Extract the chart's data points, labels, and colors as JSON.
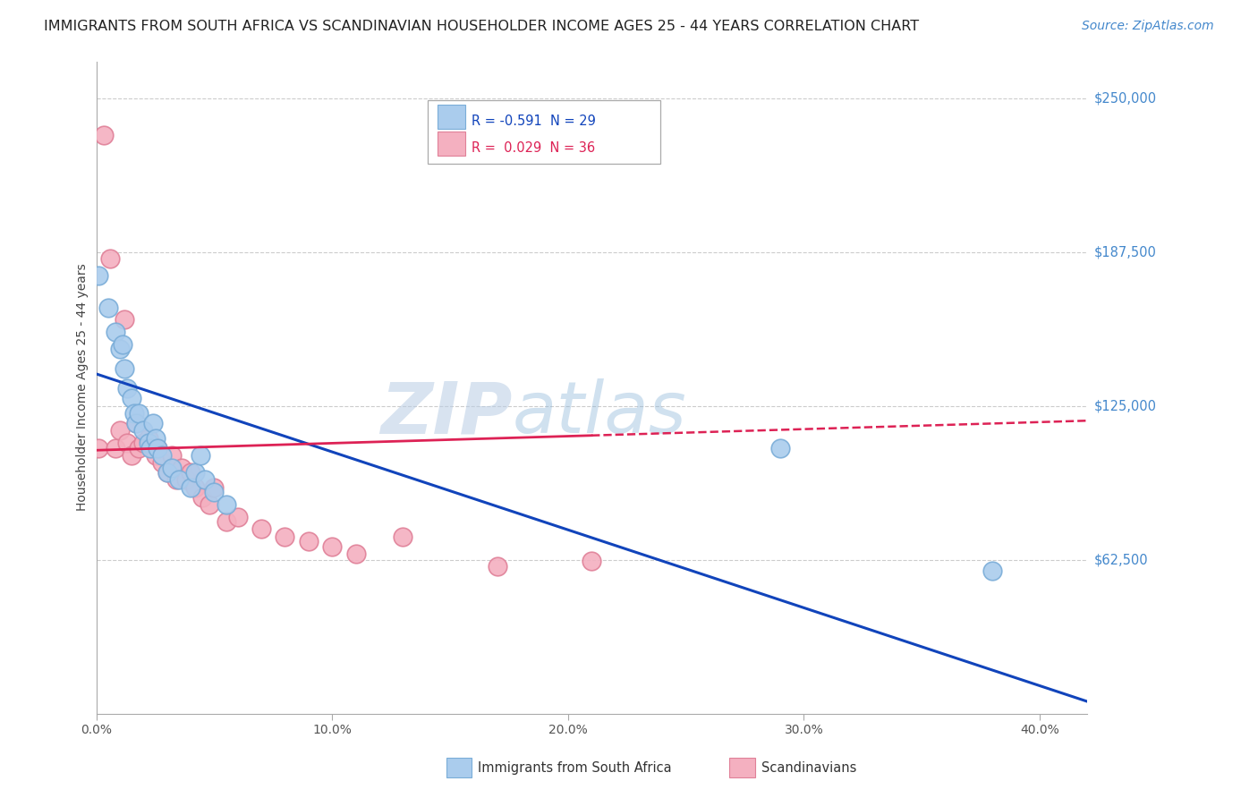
{
  "title": "IMMIGRANTS FROM SOUTH AFRICA VS SCANDINAVIAN HOUSEHOLDER INCOME AGES 25 - 44 YEARS CORRELATION CHART",
  "source_text": "Source: ZipAtlas.com",
  "ylabel": "Householder Income Ages 25 - 44 years",
  "xlabel_ticks": [
    "0.0%",
    "10.0%",
    "20.0%",
    "30.0%",
    "40.0%"
  ],
  "xlabel_tick_vals": [
    0.0,
    0.1,
    0.2,
    0.3,
    0.4
  ],
  "ytick_labels": [
    "$62,500",
    "$125,000",
    "$187,500",
    "$250,000"
  ],
  "ytick_vals": [
    62500,
    125000,
    187500,
    250000
  ],
  "xlim": [
    0.0,
    0.42
  ],
  "ylim": [
    0,
    265000
  ],
  "background_color": "#ffffff",
  "grid_color": "#cccccc",
  "title_color": "#222222",
  "title_fontsize": 11.5,
  "source_fontsize": 10,
  "source_color": "#4488cc",
  "watermark_color": "#d0dff0",
  "south_africa_color": "#aacced",
  "south_africa_edge": "#7aadd8",
  "scandinavian_color": "#f4b0c0",
  "scandinavian_edge": "#e08098",
  "south_africa_line_color": "#1144bb",
  "scandinavian_line_color": "#dd2255",
  "legend_r_sa": "R = -0.591",
  "legend_n_sa": "N = 29",
  "legend_r_sc": "R =  0.029",
  "legend_n_sc": "N = 36",
  "legend_color_sa": "#1144bb",
  "legend_color_sc": "#dd2255",
  "south_africa_x": [
    0.001,
    0.005,
    0.008,
    0.01,
    0.011,
    0.012,
    0.013,
    0.015,
    0.016,
    0.017,
    0.018,
    0.02,
    0.022,
    0.023,
    0.024,
    0.025,
    0.026,
    0.028,
    0.03,
    0.032,
    0.035,
    0.04,
    0.042,
    0.044,
    0.046,
    0.05,
    0.055,
    0.29,
    0.38
  ],
  "south_africa_y": [
    178000,
    165000,
    155000,
    148000,
    150000,
    140000,
    132000,
    128000,
    122000,
    118000,
    122000,
    115000,
    110000,
    108000,
    118000,
    112000,
    108000,
    105000,
    98000,
    100000,
    95000,
    92000,
    98000,
    105000,
    95000,
    90000,
    85000,
    108000,
    58000
  ],
  "scandinavian_x": [
    0.001,
    0.003,
    0.006,
    0.008,
    0.01,
    0.012,
    0.013,
    0.015,
    0.017,
    0.018,
    0.02,
    0.022,
    0.024,
    0.025,
    0.026,
    0.028,
    0.03,
    0.032,
    0.034,
    0.036,
    0.038,
    0.04,
    0.042,
    0.045,
    0.048,
    0.05,
    0.055,
    0.06,
    0.07,
    0.08,
    0.09,
    0.1,
    0.11,
    0.13,
    0.17,
    0.21
  ],
  "scandinavian_y": [
    108000,
    235000,
    185000,
    108000,
    115000,
    160000,
    110000,
    105000,
    118000,
    108000,
    110000,
    112000,
    108000,
    105000,
    108000,
    102000,
    98000,
    105000,
    95000,
    100000,
    95000,
    98000,
    92000,
    88000,
    85000,
    92000,
    78000,
    80000,
    75000,
    72000,
    70000,
    68000,
    65000,
    72000,
    60000,
    62000
  ],
  "sa_line_x0": 0.0,
  "sa_line_x1": 0.42,
  "sa_line_y0": 138000,
  "sa_line_y1": 5000,
  "sc_line_solid_x0": 0.0,
  "sc_line_solid_x1": 0.21,
  "sc_line_y0": 107000,
  "sc_line_y1": 113000,
  "sc_line_dash_x0": 0.21,
  "sc_line_dash_x1": 0.42,
  "sc_line_dash_y0": 113000,
  "sc_line_dash_y1": 119000
}
